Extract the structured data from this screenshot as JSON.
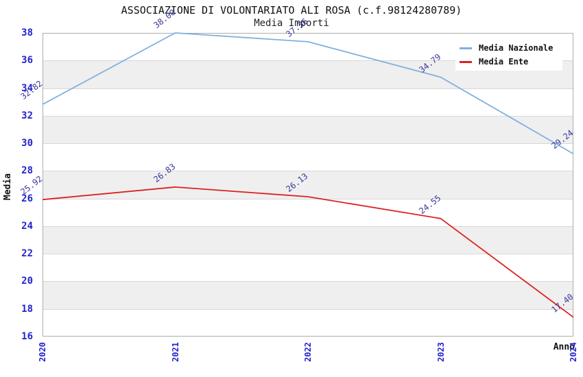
{
  "chart_data": {
    "type": "line",
    "title": "ASSOCIAZIONE DI VOLONTARIATO ALI ROSA (c.f.98124280789)",
    "subtitle": "Media Importi",
    "xlabel": "Anno",
    "ylabel": "Media",
    "x": [
      "2020",
      "2021",
      "2022",
      "2023",
      "2024"
    ],
    "ylim": [
      16,
      38
    ],
    "ytick_step": 2,
    "grid": true,
    "legend_position": "top-right",
    "series": [
      {
        "name": "Media Nazionale",
        "color": "#7fb0e0",
        "values": [
          32.82,
          38.0,
          37.36,
          34.79,
          29.24
        ]
      },
      {
        "name": "Media Ente",
        "color": "#dd2020",
        "values": [
          25.92,
          26.83,
          26.13,
          24.55,
          17.4
        ]
      }
    ],
    "styles": {
      "tick_label_color": "#2323cc",
      "point_label_color": "#38389b",
      "band_color": "#efefef",
      "grid_color": "#d8d8d8",
      "axis_color": "#adadad",
      "text_color": "#111111"
    }
  }
}
